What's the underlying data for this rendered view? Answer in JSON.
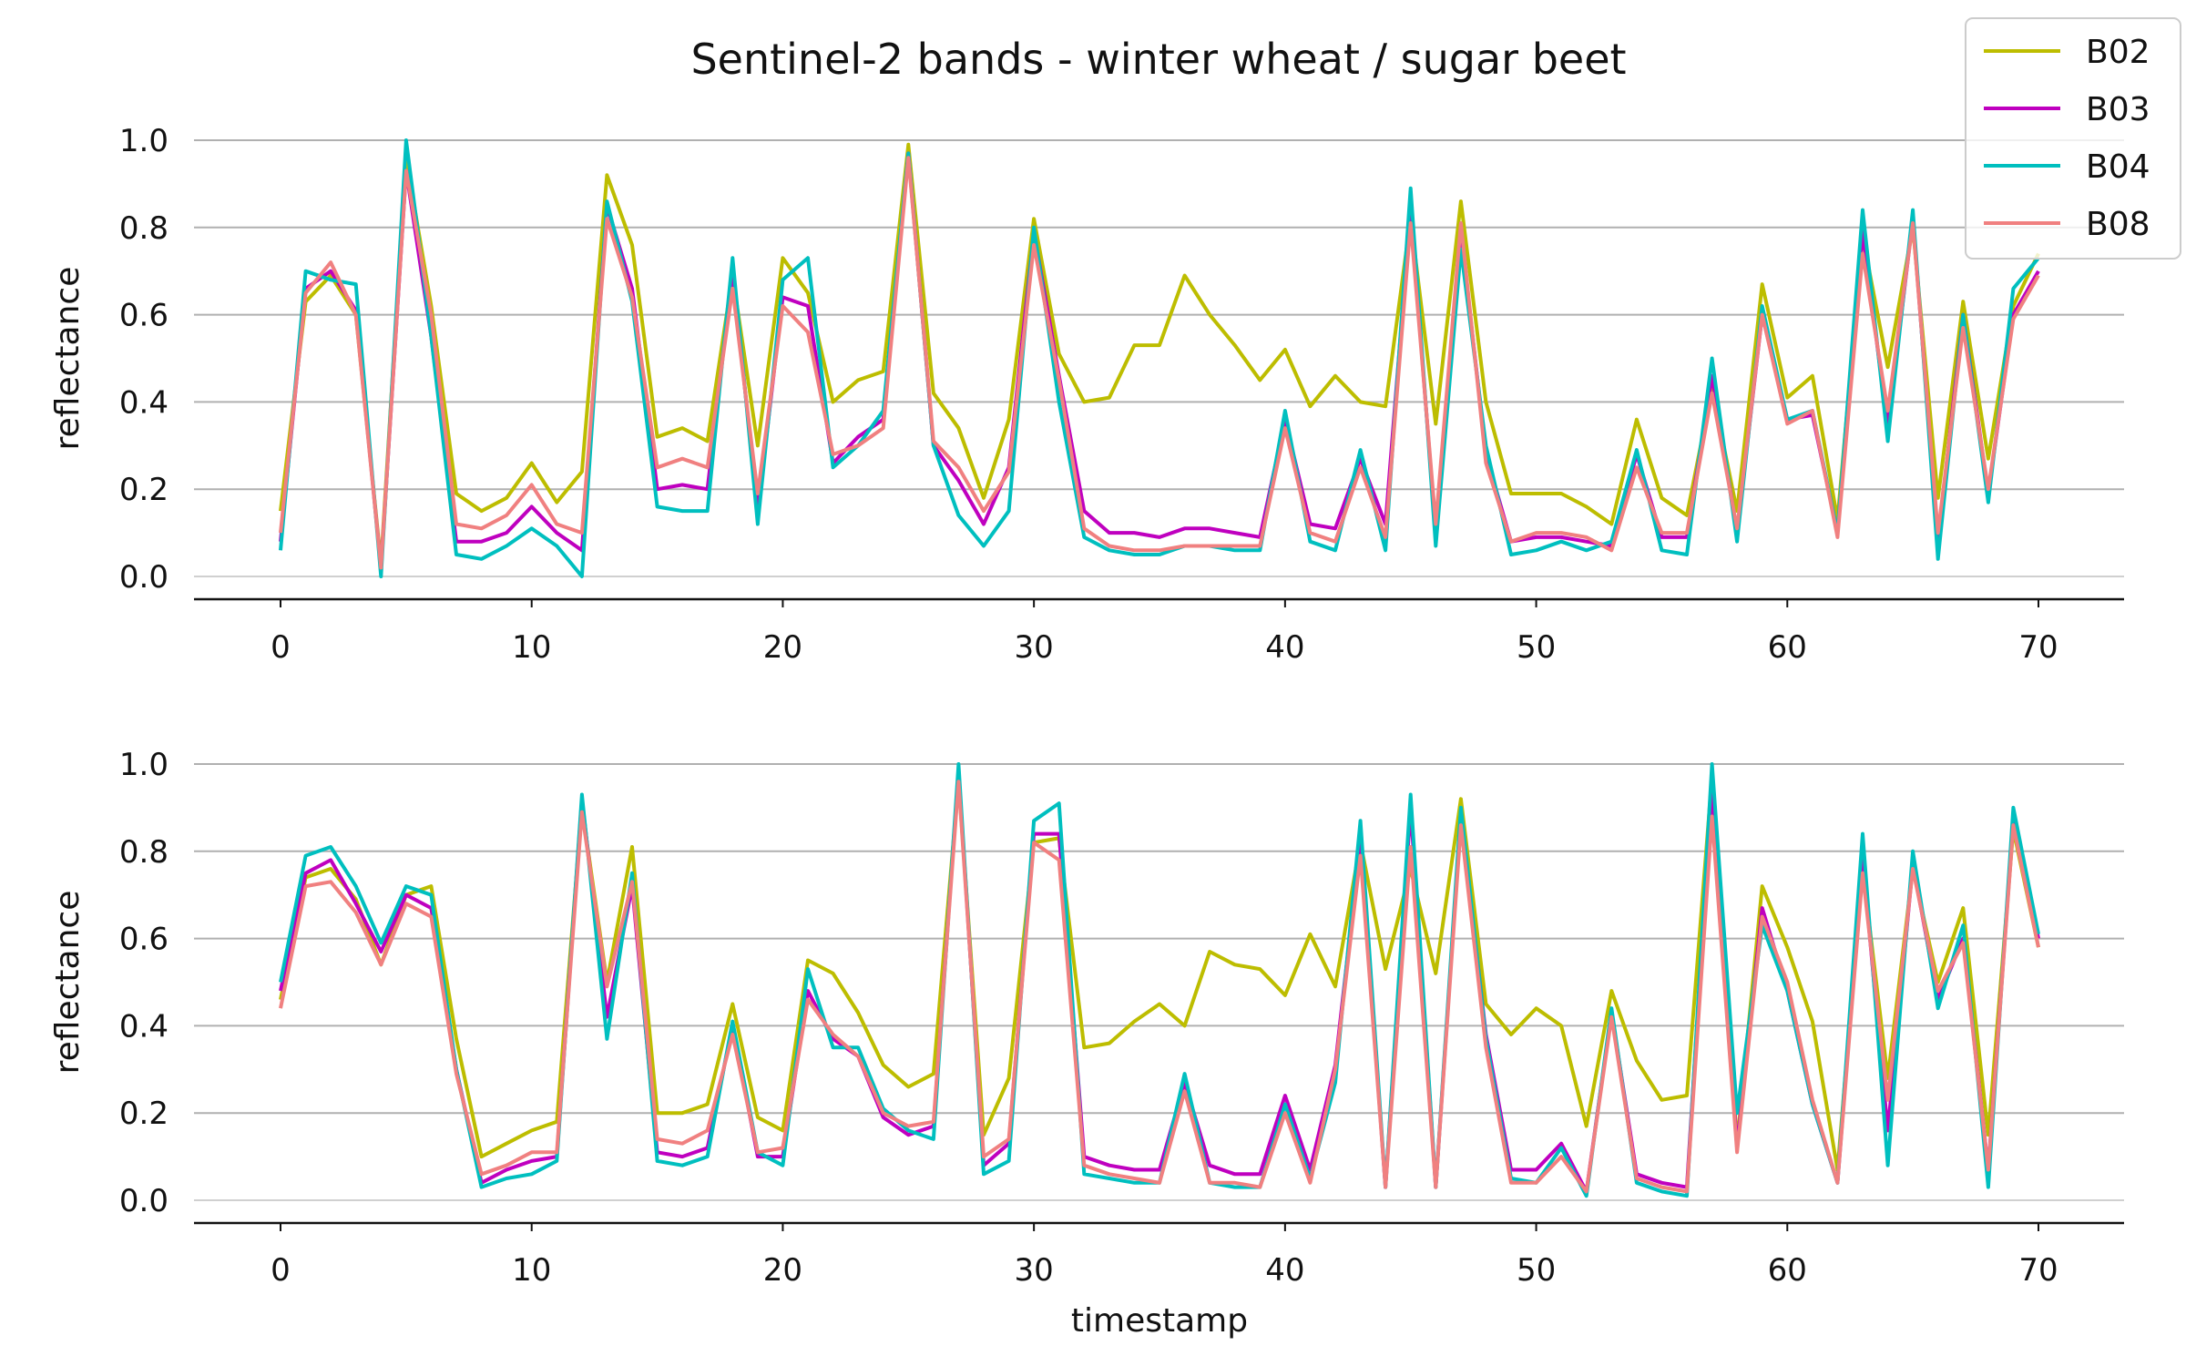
{
  "chart_data": {
    "type": "line",
    "title": "Sentinel-2 bands - winter wheat / sugar beet",
    "legend": {
      "placement": "top-right",
      "entries": [
        {
          "name": "B02",
          "color": "#bdbd00"
        },
        {
          "name": "B03",
          "color": "#bf00bf"
        },
        {
          "name": "B04",
          "color": "#00bfbf"
        },
        {
          "name": "B08",
          "color": "#f08080"
        }
      ]
    },
    "grid": "horizontal",
    "subplots": [
      {
        "ylabel": "reflectance",
        "xlabel": "",
        "xlim": [
          -3.5,
          73.5
        ],
        "ylim": [
          -0.05,
          1.05
        ],
        "xticks": [
          0,
          10,
          20,
          30,
          40,
          50,
          60,
          70
        ],
        "yticks": [
          "0.0",
          "0.2",
          "0.4",
          "0.6",
          "0.8",
          "1.0"
        ],
        "x": [
          0,
          1,
          2,
          3,
          4,
          5,
          6,
          7,
          8,
          9,
          10,
          11,
          12,
          13,
          14,
          15,
          16,
          17,
          18,
          19,
          20,
          21,
          22,
          23,
          24,
          25,
          26,
          27,
          28,
          29,
          30,
          31,
          32,
          33,
          34,
          35,
          36,
          37,
          38,
          39,
          40,
          41,
          42,
          43,
          44,
          45,
          46,
          47,
          48,
          49,
          50,
          51,
          52,
          53,
          54,
          55,
          56,
          57,
          58,
          59,
          60,
          61,
          62,
          63,
          64,
          65,
          66,
          67,
          68,
          69,
          70
        ],
        "series": [
          {
            "name": "B02",
            "values": [
              0.15,
              0.63,
              0.69,
              0.6,
              0.03,
              0.96,
              0.62,
              0.19,
              0.15,
              0.18,
              0.26,
              0.17,
              0.24,
              0.92,
              0.76,
              0.32,
              0.34,
              0.31,
              0.69,
              0.3,
              0.73,
              0.65,
              0.4,
              0.45,
              0.47,
              0.99,
              0.42,
              0.34,
              0.18,
              0.36,
              0.82,
              0.51,
              0.4,
              0.41,
              0.53,
              0.53,
              0.69,
              0.6,
              0.53,
              0.45,
              0.52,
              0.39,
              0.46,
              0.4,
              0.39,
              0.82,
              0.35,
              0.86,
              0.4,
              0.19,
              0.19,
              0.19,
              0.16,
              0.12,
              0.36,
              0.18,
              0.14,
              0.43,
              0.15,
              0.67,
              0.41,
              0.46,
              0.13,
              0.78,
              0.48,
              0.8,
              0.18,
              0.63,
              0.27,
              0.62,
              0.74
            ]
          },
          {
            "name": "B03",
            "values": [
              0.08,
              0.66,
              0.7,
              0.61,
              0.02,
              0.93,
              0.55,
              0.08,
              0.08,
              0.1,
              0.16,
              0.1,
              0.06,
              0.85,
              0.66,
              0.2,
              0.21,
              0.2,
              0.7,
              0.15,
              0.64,
              0.62,
              0.26,
              0.32,
              0.36,
              0.97,
              0.3,
              0.22,
              0.12,
              0.25,
              0.79,
              0.46,
              0.15,
              0.1,
              0.1,
              0.09,
              0.11,
              0.11,
              0.1,
              0.09,
              0.36,
              0.12,
              0.11,
              0.27,
              0.12,
              0.84,
              0.1,
              0.79,
              0.28,
              0.08,
              0.09,
              0.09,
              0.08,
              0.07,
              0.28,
              0.09,
              0.09,
              0.46,
              0.1,
              0.6,
              0.36,
              0.37,
              0.1,
              0.79,
              0.34,
              0.82,
              0.08,
              0.6,
              0.19,
              0.6,
              0.7
            ]
          },
          {
            "name": "B04",
            "values": [
              0.06,
              0.7,
              0.68,
              0.67,
              0.0,
              1.0,
              0.55,
              0.05,
              0.04,
              0.07,
              0.11,
              0.07,
              0.0,
              0.86,
              0.63,
              0.16,
              0.15,
              0.15,
              0.73,
              0.12,
              0.68,
              0.73,
              0.25,
              0.3,
              0.38,
              0.97,
              0.3,
              0.14,
              0.07,
              0.15,
              0.8,
              0.4,
              0.09,
              0.06,
              0.05,
              0.05,
              0.07,
              0.07,
              0.06,
              0.06,
              0.38,
              0.08,
              0.06,
              0.29,
              0.06,
              0.89,
              0.07,
              0.75,
              0.3,
              0.05,
              0.06,
              0.08,
              0.06,
              0.08,
              0.29,
              0.06,
              0.05,
              0.5,
              0.08,
              0.62,
              0.36,
              0.38,
              0.1,
              0.84,
              0.31,
              0.84,
              0.04,
              0.6,
              0.17,
              0.66,
              0.73
            ]
          },
          {
            "name": "B08",
            "values": [
              0.1,
              0.65,
              0.72,
              0.6,
              0.02,
              0.93,
              0.6,
              0.12,
              0.11,
              0.14,
              0.21,
              0.12,
              0.1,
              0.82,
              0.64,
              0.25,
              0.27,
              0.25,
              0.66,
              0.19,
              0.62,
              0.56,
              0.28,
              0.3,
              0.34,
              0.96,
              0.31,
              0.25,
              0.15,
              0.24,
              0.76,
              0.45,
              0.11,
              0.07,
              0.06,
              0.06,
              0.07,
              0.07,
              0.07,
              0.07,
              0.34,
              0.1,
              0.08,
              0.25,
              0.09,
              0.81,
              0.12,
              0.81,
              0.26,
              0.08,
              0.1,
              0.1,
              0.09,
              0.06,
              0.25,
              0.1,
              0.1,
              0.42,
              0.11,
              0.6,
              0.35,
              0.38,
              0.09,
              0.74,
              0.38,
              0.81,
              0.1,
              0.57,
              0.2,
              0.59,
              0.69
            ]
          }
        ]
      },
      {
        "ylabel": "reflectance",
        "xlabel": "timestamp",
        "xlim": [
          -3.5,
          73.5
        ],
        "ylim": [
          -0.05,
          1.05
        ],
        "xticks": [
          0,
          10,
          20,
          30,
          40,
          50,
          60,
          70
        ],
        "yticks": [
          "0.0",
          "0.2",
          "0.4",
          "0.6",
          "0.8",
          "1.0"
        ],
        "x": [
          0,
          1,
          2,
          3,
          4,
          5,
          6,
          7,
          8,
          9,
          10,
          11,
          12,
          13,
          14,
          15,
          16,
          17,
          18,
          19,
          20,
          21,
          22,
          23,
          24,
          25,
          26,
          27,
          28,
          29,
          30,
          31,
          32,
          33,
          34,
          35,
          36,
          37,
          38,
          39,
          40,
          41,
          42,
          43,
          44,
          45,
          46,
          47,
          48,
          49,
          50,
          51,
          52,
          53,
          54,
          55,
          56,
          57,
          58,
          59,
          60,
          61,
          62,
          63,
          64,
          65,
          66,
          67,
          68,
          69,
          70
        ],
        "series": [
          {
            "name": "B02",
            "values": [
              0.46,
              0.74,
              0.76,
              0.69,
              0.54,
              0.7,
              0.72,
              0.37,
              0.1,
              0.13,
              0.16,
              0.18,
              0.9,
              0.5,
              0.81,
              0.2,
              0.2,
              0.22,
              0.45,
              0.19,
              0.16,
              0.55,
              0.52,
              0.43,
              0.31,
              0.26,
              0.29,
              0.96,
              0.15,
              0.28,
              0.82,
              0.83,
              0.35,
              0.36,
              0.41,
              0.45,
              0.4,
              0.57,
              0.54,
              0.53,
              0.47,
              0.61,
              0.49,
              0.82,
              0.53,
              0.76,
              0.52,
              0.92,
              0.45,
              0.38,
              0.44,
              0.4,
              0.17,
              0.48,
              0.32,
              0.23,
              0.24,
              0.97,
              0.13,
              0.72,
              0.58,
              0.41,
              0.07,
              0.76,
              0.28,
              0.76,
              0.5,
              0.67,
              0.15,
              0.85,
              0.58
            ]
          },
          {
            "name": "B03",
            "values": [
              0.48,
              0.75,
              0.78,
              0.68,
              0.57,
              0.7,
              0.67,
              0.3,
              0.04,
              0.07,
              0.09,
              0.1,
              0.92,
              0.42,
              0.72,
              0.11,
              0.1,
              0.12,
              0.4,
              0.1,
              0.1,
              0.48,
              0.37,
              0.33,
              0.19,
              0.15,
              0.17,
              0.98,
              0.08,
              0.13,
              0.84,
              0.84,
              0.1,
              0.08,
              0.07,
              0.07,
              0.27,
              0.08,
              0.06,
              0.06,
              0.24,
              0.07,
              0.31,
              0.82,
              0.03,
              0.9,
              0.03,
              0.88,
              0.38,
              0.07,
              0.07,
              0.13,
              0.02,
              0.43,
              0.06,
              0.04,
              0.03,
              0.95,
              0.12,
              0.67,
              0.48,
              0.22,
              0.04,
              0.78,
              0.16,
              0.77,
              0.46,
              0.6,
              0.07,
              0.87,
              0.6
            ]
          },
          {
            "name": "B04",
            "values": [
              0.5,
              0.79,
              0.81,
              0.72,
              0.59,
              0.72,
              0.7,
              0.3,
              0.03,
              0.05,
              0.06,
              0.09,
              0.93,
              0.37,
              0.75,
              0.09,
              0.08,
              0.1,
              0.41,
              0.11,
              0.08,
              0.53,
              0.35,
              0.35,
              0.21,
              0.16,
              0.14,
              1.0,
              0.06,
              0.09,
              0.87,
              0.91,
              0.06,
              0.05,
              0.04,
              0.04,
              0.29,
              0.04,
              0.03,
              0.03,
              0.22,
              0.05,
              0.27,
              0.87,
              0.03,
              0.93,
              0.03,
              0.9,
              0.37,
              0.05,
              0.04,
              0.12,
              0.01,
              0.44,
              0.04,
              0.02,
              0.01,
              1.0,
              0.2,
              0.63,
              0.48,
              0.22,
              0.04,
              0.84,
              0.08,
              0.8,
              0.44,
              0.63,
              0.03,
              0.9,
              0.61
            ]
          },
          {
            "name": "B08",
            "values": [
              0.44,
              0.72,
              0.73,
              0.66,
              0.54,
              0.68,
              0.65,
              0.29,
              0.06,
              0.08,
              0.11,
              0.11,
              0.89,
              0.49,
              0.73,
              0.14,
              0.13,
              0.16,
              0.38,
              0.11,
              0.12,
              0.46,
              0.38,
              0.33,
              0.2,
              0.17,
              0.18,
              0.96,
              0.1,
              0.14,
              0.82,
              0.78,
              0.08,
              0.06,
              0.05,
              0.04,
              0.25,
              0.04,
              0.04,
              0.03,
              0.2,
              0.04,
              0.3,
              0.79,
              0.03,
              0.81,
              0.03,
              0.86,
              0.35,
              0.04,
              0.04,
              0.1,
              0.02,
              0.42,
              0.05,
              0.03,
              0.02,
              0.88,
              0.11,
              0.65,
              0.5,
              0.23,
              0.04,
              0.75,
              0.23,
              0.76,
              0.48,
              0.59,
              0.07,
              0.86,
              0.58
            ]
          }
        ]
      }
    ]
  }
}
